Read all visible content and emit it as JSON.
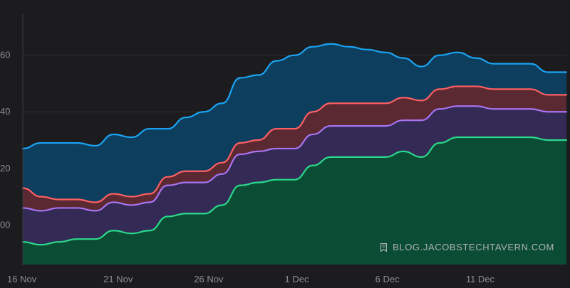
{
  "chart_data": {
    "type": "area",
    "x": [
      "16 Nov",
      "17 Nov",
      "18 Nov",
      "19 Nov",
      "20 Nov",
      "21 Nov",
      "22 Nov",
      "23 Nov",
      "24 Nov",
      "25 Nov",
      "26 Nov",
      "27 Nov",
      "28 Nov",
      "29 Nov",
      "30 Nov",
      "1 Dec",
      "2 Dec",
      "3 Dec",
      "4 Dec",
      "5 Dec",
      "6 Dec",
      "7 Dec",
      "8 Dec",
      "9 Dec",
      "10 Dec",
      "11 Dec",
      "12 Dec",
      "13 Dec",
      "14 Dec",
      "15 Dec",
      "16 Dec"
    ],
    "x_tick_labels": [
      "16 Nov",
      "21 Nov",
      "26 Nov",
      "1 Dec",
      "6 Dec",
      "11 Dec"
    ],
    "y_tick_labels": [
      "00",
      "20",
      "40",
      "60"
    ],
    "ylim": [
      -14,
      75
    ],
    "grid": "horizontal",
    "series": [
      {
        "color": "#2bd98c",
        "fill": "#0b4d34",
        "values": [
          -6,
          -7,
          -6,
          -5,
          -5,
          -2,
          -3,
          -2,
          3,
          4,
          4,
          7,
          14,
          15,
          16,
          16,
          21,
          24,
          24,
          24,
          24,
          26,
          24,
          29,
          31,
          31,
          31,
          31,
          31,
          30,
          30
        ]
      },
      {
        "color": "#a873f0",
        "fill": "#332a55",
        "values": [
          6,
          5,
          6,
          6,
          5,
          8,
          7,
          8,
          14,
          15,
          15,
          18,
          25,
          26,
          27,
          27,
          32,
          35,
          35,
          35,
          35,
          37,
          37,
          41,
          42,
          42,
          41,
          41,
          41,
          40,
          40
        ]
      },
      {
        "color": "#ff5f62",
        "fill": "#5a2932",
        "values": [
          13,
          10,
          9,
          9,
          8,
          11,
          10,
          11,
          17,
          19,
          19,
          22,
          29,
          30,
          34,
          34,
          40,
          43,
          43,
          43,
          43,
          45,
          44,
          48,
          49,
          49,
          48,
          48,
          48,
          46,
          46
        ]
      },
      {
        "color": "#1aa3f2",
        "fill": "#0e3e5e",
        "values": [
          27,
          29,
          29,
          29,
          28,
          32,
          31,
          34,
          34,
          38,
          40,
          43,
          52,
          53,
          58,
          60,
          63,
          64,
          63,
          62,
          61,
          59,
          56,
          60,
          61,
          59,
          57,
          57,
          57,
          54,
          54
        ]
      }
    ]
  },
  "watermark": {
    "icon": "bookmark-icon",
    "text": "BLOG.JACOBSTECHTAVERN.COM"
  }
}
